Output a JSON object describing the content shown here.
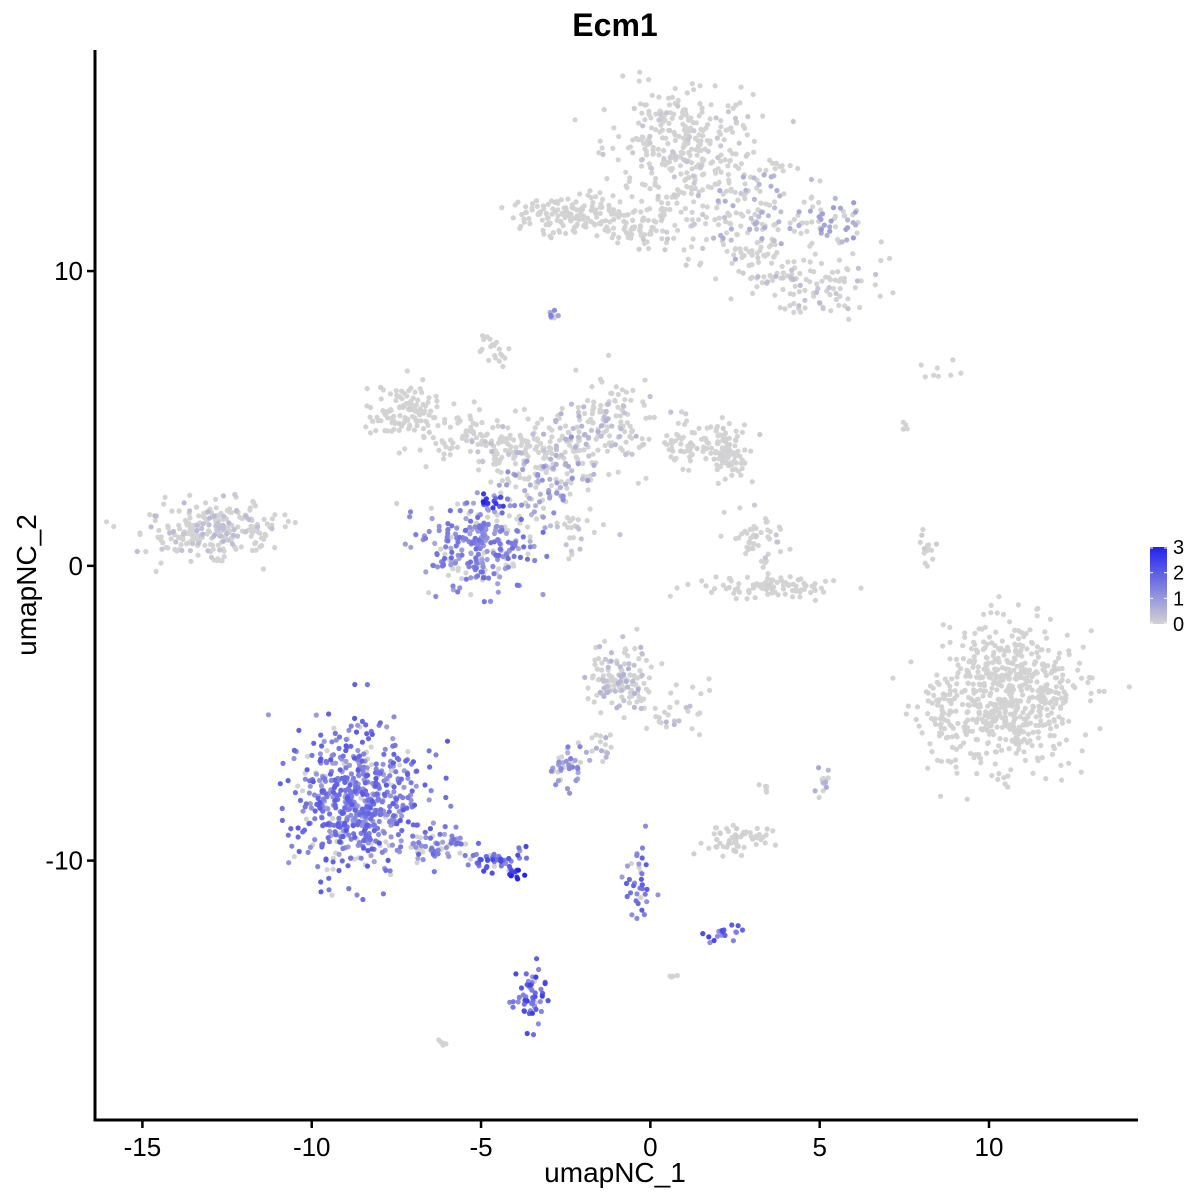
{
  "chart_data": {
    "type": "scatter",
    "title": "Ecm1",
    "xlabel": "umapNC_1",
    "ylabel": "umapNC_2",
    "xlim": [
      -16.4,
      14.4
    ],
    "ylim": [
      -18.8,
      17.5
    ],
    "x_ticks": [
      -15,
      -10,
      -5,
      0,
      5,
      10
    ],
    "y_ticks": [
      -10,
      0,
      10
    ],
    "x_tick_labels": [
      "-15",
      "-10",
      "-5",
      "0",
      "5",
      "10"
    ],
    "y_tick_labels": [
      "-10",
      "0",
      "10"
    ],
    "grid": false,
    "color_scale": {
      "low_color": "#d3d3d3",
      "high_color": "#2222ee",
      "min": 0,
      "max": 3,
      "legend_ticks": [
        0,
        1,
        2,
        3
      ],
      "legend_tick_labels": [
        "0",
        "1",
        "2",
        "3"
      ],
      "legend_placement": "right"
    },
    "clusters": [
      {
        "cx": 1.0,
        "cy": 14.3,
        "sx": 1.0,
        "sy": 1.0,
        "n": 300,
        "expr": 0.15
      },
      {
        "cx": 0.6,
        "cy": 11.8,
        "sx": 0.6,
        "sy": 0.6,
        "n": 60,
        "expr": 0.15
      },
      {
        "cx": 3.2,
        "cy": 12.2,
        "sx": 0.9,
        "sy": 0.9,
        "n": 120,
        "expr": 0.45
      },
      {
        "cx": 5.3,
        "cy": 11.7,
        "sx": 0.6,
        "sy": 0.4,
        "n": 50,
        "expr": 0.7
      },
      {
        "cx": 5.0,
        "cy": 9.5,
        "sx": 0.8,
        "sy": 0.5,
        "n": 90,
        "expr": 0.3
      },
      {
        "cx": 3.3,
        "cy": 10.5,
        "sx": 0.8,
        "sy": 0.5,
        "n": 60,
        "expr": 0.1
      },
      {
        "cx": -2.4,
        "cy": 11.9,
        "sx": 0.9,
        "sy": 0.35,
        "n": 150,
        "expr": 0.03
      },
      {
        "cx": -0.9,
        "cy": 11.3,
        "sx": 0.8,
        "sy": 0.15,
        "n": 40,
        "expr": 0.03
      },
      {
        "cx": -2.9,
        "cy": 8.6,
        "sx": 0.1,
        "sy": 0.2,
        "n": 10,
        "expr": 1.0
      },
      {
        "cx": -4.6,
        "cy": 7.3,
        "sx": 0.25,
        "sy": 0.25,
        "n": 20,
        "expr": 0.0
      },
      {
        "cx": -7.2,
        "cy": 5.3,
        "sx": 0.6,
        "sy": 0.45,
        "n": 110,
        "expr": 0.05
      },
      {
        "cx": -5.6,
        "cy": 4.4,
        "sx": 0.6,
        "sy": 0.35,
        "n": 60,
        "expr": 0.05
      },
      {
        "cx": -4.2,
        "cy": 3.9,
        "sx": 0.6,
        "sy": 0.35,
        "n": 80,
        "expr": 0.3
      },
      {
        "cx": -3.5,
        "cy": 2.8,
        "sx": 0.6,
        "sy": 0.7,
        "n": 100,
        "expr": 0.8
      },
      {
        "cx": -2.3,
        "cy": 4.1,
        "sx": 0.8,
        "sy": 0.8,
        "n": 120,
        "expr": 0.4
      },
      {
        "cx": -1.1,
        "cy": 5.1,
        "sx": 0.6,
        "sy": 0.7,
        "n": 90,
        "expr": 0.3
      },
      {
        "cx": 1.3,
        "cy": 4.2,
        "sx": 0.7,
        "sy": 0.4,
        "n": 80,
        "expr": 0.1
      },
      {
        "cx": 2.4,
        "cy": 3.8,
        "sx": 0.3,
        "sy": 0.45,
        "n": 70,
        "expr": 0.05
      },
      {
        "cx": -5.0,
        "cy": 0.7,
        "sx": 0.85,
        "sy": 0.75,
        "n": 260,
        "expr": 1.2
      },
      {
        "cx": -4.7,
        "cy": 2.2,
        "sx": 0.2,
        "sy": 0.2,
        "n": 12,
        "expr": 2.2
      },
      {
        "cx": -2.2,
        "cy": 1.2,
        "sx": 0.5,
        "sy": 0.4,
        "n": 25,
        "expr": 0.3
      },
      {
        "cx": -13.2,
        "cy": 1.2,
        "sx": 0.9,
        "sy": 0.5,
        "n": 190,
        "expr": 0.3
      },
      {
        "cx": -11.8,
        "cy": 1.5,
        "sx": 0.7,
        "sy": 0.4,
        "n": 60,
        "expr": 0.3
      },
      {
        "cx": 3.2,
        "cy": 0.8,
        "sx": 0.4,
        "sy": 0.5,
        "n": 50,
        "expr": 0.2
      },
      {
        "cx": 3.6,
        "cy": -0.7,
        "sx": 0.9,
        "sy": 0.2,
        "n": 90,
        "expr": 0.05
      },
      {
        "cx": 8.2,
        "cy": 0.5,
        "sx": 0.15,
        "sy": 0.4,
        "n": 15,
        "expr": 0.2
      },
      {
        "cx": 10.6,
        "cy": -4.4,
        "sx": 1.0,
        "sy": 1.2,
        "n": 620,
        "expr": 0.02
      },
      {
        "cx": 8.5,
        "cy": -5.2,
        "sx": 0.35,
        "sy": 0.6,
        "n": 40,
        "expr": 0.01
      },
      {
        "cx": -0.9,
        "cy": -3.8,
        "sx": 0.45,
        "sy": 0.6,
        "n": 130,
        "expr": 0.4
      },
      {
        "cx": 0.8,
        "cy": -4.9,
        "sx": 0.5,
        "sy": 0.5,
        "n": 30,
        "expr": 0.3
      },
      {
        "cx": -1.4,
        "cy": -5.7,
        "sx": 0.15,
        "sy": 0.6,
        "n": 15,
        "expr": 0.6
      },
      {
        "cx": -2.4,
        "cy": -6.9,
        "sx": 0.3,
        "sy": 0.3,
        "n": 40,
        "expr": 1.0
      },
      {
        "cx": -8.6,
        "cy": -8.0,
        "sx": 0.9,
        "sy": 1.2,
        "n": 620,
        "expr": 1.4
      },
      {
        "cx": -6.2,
        "cy": -9.5,
        "sx": 0.5,
        "sy": 0.25,
        "n": 60,
        "expr": 1.2
      },
      {
        "cx": -4.6,
        "cy": -10.0,
        "sx": 0.4,
        "sy": 0.2,
        "n": 45,
        "expr": 1.6
      },
      {
        "cx": -4.0,
        "cy": -10.4,
        "sx": 0.12,
        "sy": 0.1,
        "n": 12,
        "expr": 3.0
      },
      {
        "cx": 2.6,
        "cy": -9.3,
        "sx": 0.5,
        "sy": 0.3,
        "n": 60,
        "expr": 0.08
      },
      {
        "cx": 3.4,
        "cy": -7.6,
        "sx": 0.1,
        "sy": 0.1,
        "n": 5,
        "expr": 0.0
      },
      {
        "cx": 5.1,
        "cy": -7.3,
        "sx": 0.12,
        "sy": 0.25,
        "n": 12,
        "expr": 0.6
      },
      {
        "cx": -0.4,
        "cy": -11.0,
        "sx": 0.2,
        "sy": 0.7,
        "n": 35,
        "expr": 1.4
      },
      {
        "cx": 2.2,
        "cy": -12.5,
        "sx": 0.3,
        "sy": 0.15,
        "n": 20,
        "expr": 1.6
      },
      {
        "cx": -3.5,
        "cy": -14.6,
        "sx": 0.25,
        "sy": 0.5,
        "n": 55,
        "expr": 1.7
      },
      {
        "cx": -6.1,
        "cy": -16.2,
        "sx": 0.1,
        "sy": 0.05,
        "n": 5,
        "expr": 0.0
      },
      {
        "cx": 0.6,
        "cy": -13.9,
        "sx": 0.1,
        "sy": 0.05,
        "n": 4,
        "expr": 0.0
      },
      {
        "cx": 8.6,
        "cy": 6.6,
        "sx": 0.5,
        "sy": 0.2,
        "n": 8,
        "expr": 0.0
      },
      {
        "cx": 7.6,
        "cy": 4.7,
        "sx": 0.08,
        "sy": 0.15,
        "n": 4,
        "expr": 0.0
      }
    ]
  }
}
